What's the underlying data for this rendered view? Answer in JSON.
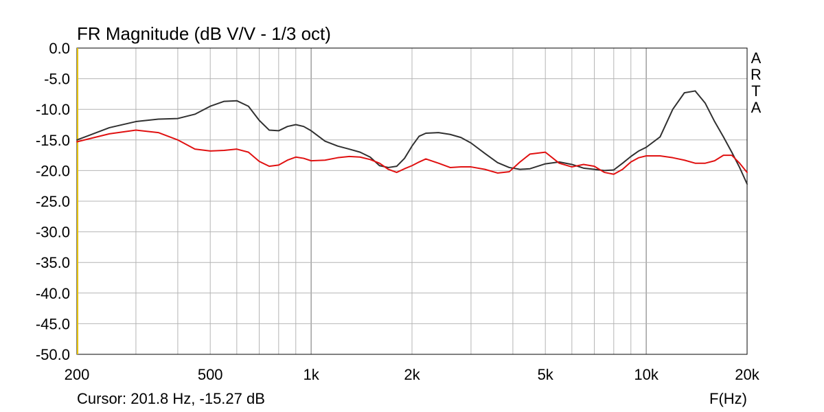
{
  "chart_data": {
    "type": "line",
    "title": "FR Magnitude (dB V/V - 1/3 oct)",
    "xlabel": "F(Hz)",
    "ylabel": "",
    "xscale": "log",
    "xlim": [
      200,
      20000
    ],
    "ylim": [
      -50,
      0
    ],
    "grid": true,
    "y_ticks": [
      0,
      -5,
      -10,
      -15,
      -20,
      -25,
      -30,
      -35,
      -40,
      -45,
      -50
    ],
    "y_tick_labels": [
      "0.0",
      "-5.0",
      "-10.0",
      "-15.0",
      "-20.0",
      "-25.0",
      "-30.0",
      "-35.0",
      "-40.0",
      "-45.0",
      "-50.0"
    ],
    "x_ticks": [
      200,
      500,
      1000,
      2000,
      5000,
      10000,
      20000
    ],
    "x_tick_labels": [
      "200",
      "500",
      "1k",
      "2k",
      "5k",
      "10k",
      "20k"
    ],
    "brand_letters": [
      "A",
      "R",
      "T",
      "A"
    ],
    "cursor_text": "Cursor: 201.8 Hz, -15.27 dB",
    "cursor_freq_hz": 201.8,
    "series": [
      {
        "color": "#303030",
        "x": [
          200,
          250,
          300,
          350,
          400,
          450,
          500,
          550,
          600,
          650,
          700,
          750,
          800,
          850,
          900,
          950,
          1000,
          1100,
          1200,
          1300,
          1400,
          1500,
          1600,
          1700,
          1800,
          1900,
          2000,
          2100,
          2200,
          2400,
          2600,
          2800,
          3000,
          3300,
          3600,
          3900,
          4200,
          4500,
          5000,
          5500,
          6000,
          6500,
          7000,
          7500,
          8000,
          8500,
          9000,
          9500,
          10000,
          11000,
          12000,
          13000,
          14000,
          15000,
          16000,
          17000,
          18000,
          19000,
          20000
        ],
        "y": [
          -15.0,
          -13.0,
          -12.0,
          -11.6,
          -11.5,
          -10.8,
          -9.5,
          -8.7,
          -8.6,
          -9.5,
          -11.8,
          -13.4,
          -13.5,
          -12.8,
          -12.5,
          -12.8,
          -13.5,
          -15.2,
          -16.0,
          -16.5,
          -17.0,
          -17.8,
          -19.2,
          -19.5,
          -19.3,
          -18.0,
          -16.0,
          -14.4,
          -13.9,
          -13.8,
          -14.1,
          -14.6,
          -15.5,
          -17.2,
          -18.7,
          -19.5,
          -19.8,
          -19.7,
          -18.9,
          -18.6,
          -19.0,
          -19.6,
          -19.8,
          -20.0,
          -19.9,
          -18.8,
          -17.7,
          -16.8,
          -16.2,
          -14.5,
          -10.0,
          -7.3,
          -7.0,
          -9.0,
          -12.0,
          -14.5,
          -17.0,
          -19.5,
          -22.2
        ]
      },
      {
        "color": "#e01010",
        "x": [
          200,
          250,
          300,
          350,
          400,
          450,
          500,
          550,
          600,
          650,
          700,
          750,
          800,
          850,
          900,
          950,
          1000,
          1100,
          1200,
          1300,
          1400,
          1500,
          1600,
          1700,
          1800,
          1900,
          2000,
          2100,
          2200,
          2400,
          2600,
          2800,
          3000,
          3300,
          3600,
          3900,
          4200,
          4500,
          5000,
          5500,
          6000,
          6500,
          7000,
          7500,
          8000,
          8500,
          9000,
          9500,
          10000,
          11000,
          12000,
          13000,
          14000,
          15000,
          16000,
          17000,
          18000,
          19000,
          20000
        ],
        "y": [
          -15.3,
          -14.0,
          -13.4,
          -13.8,
          -15.0,
          -16.5,
          -16.8,
          -16.7,
          -16.5,
          -17.0,
          -18.5,
          -19.3,
          -19.1,
          -18.3,
          -17.8,
          -18.0,
          -18.4,
          -18.3,
          -17.9,
          -17.7,
          -17.8,
          -18.2,
          -18.8,
          -19.8,
          -20.3,
          -19.7,
          -19.2,
          -18.6,
          -18.1,
          -18.8,
          -19.5,
          -19.4,
          -19.4,
          -19.8,
          -20.4,
          -20.2,
          -18.6,
          -17.3,
          -17.0,
          -18.8,
          -19.4,
          -19.0,
          -19.3,
          -20.3,
          -20.6,
          -19.8,
          -18.6,
          -17.9,
          -17.6,
          -17.6,
          -17.9,
          -18.3,
          -18.8,
          -18.8,
          -18.4,
          -17.5,
          -17.5,
          -18.8,
          -20.3
        ]
      }
    ]
  }
}
